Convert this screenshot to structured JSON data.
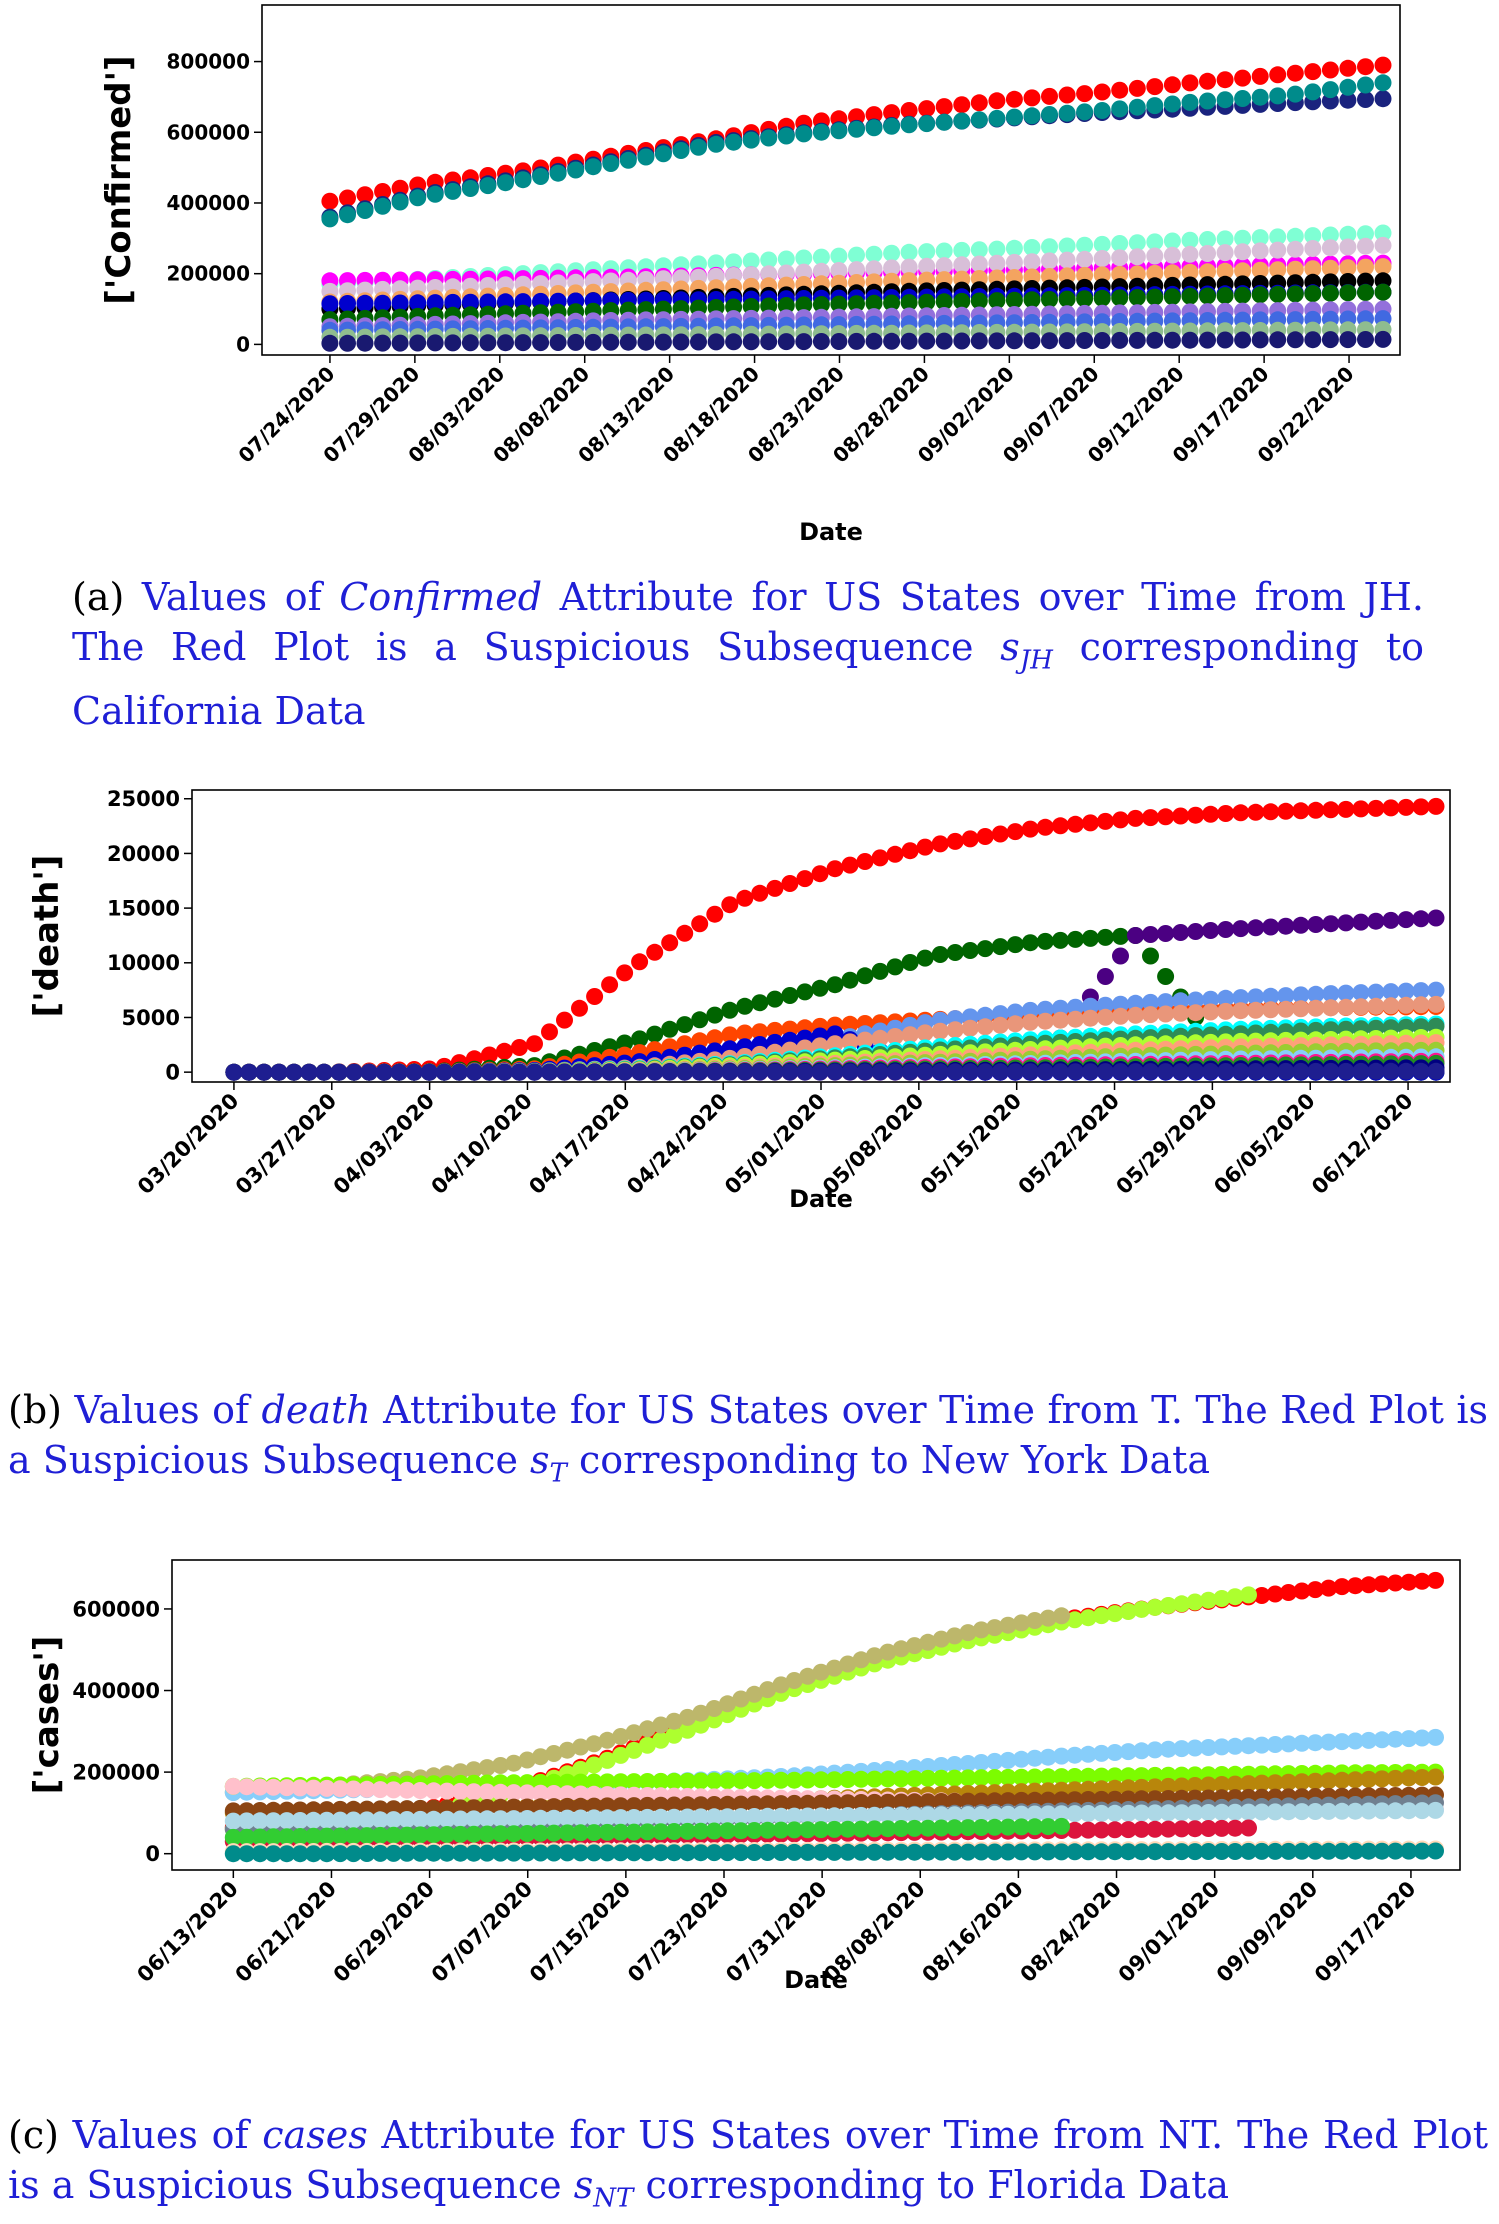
{
  "captions": {
    "a": {
      "tag": "(a)",
      "before": "Values of ",
      "italic": "Confirmed",
      "middle": " Attribute for US States over Time from JH. The Red Plot is a Suspicious Subsequence ",
      "math_main": "s",
      "math_sub": "JH",
      "after": " corresponding to California Data"
    },
    "b": {
      "tag": "(b)",
      "before": "Values of ",
      "italic": "death",
      "middle": " Attribute for US States over Time from T. The Red Plot is a Suspicious Subsequence ",
      "math_main": "s",
      "math_sub": "T",
      "after": " corresponding to New York Data"
    },
    "c": {
      "tag": "(c)",
      "before": "Values of ",
      "italic": "cases",
      "middle": " Attribute for US States over Time from NT. The Red Plot is a Suspicious Subsequence ",
      "math_main": "s",
      "math_sub": "NT",
      "after": " corresponding to Florida Data"
    }
  },
  "chart_data": [
    {
      "id": "a",
      "type": "scatter",
      "xlabel": "Date",
      "ylabel": "['Confirmed']",
      "ylim": [
        -30000,
        960000
      ],
      "yticks": [
        0,
        200000,
        400000,
        600000,
        800000
      ],
      "xlim": [
        "07/20/2020",
        "09/25/2020"
      ],
      "x_start": "07/24/2020",
      "x_end": "09/24/2020",
      "xticks": [
        "07/24/2020",
        "07/29/2020",
        "08/03/2020",
        "08/08/2020",
        "08/13/2020",
        "08/18/2020",
        "08/23/2020",
        "08/28/2020",
        "09/02/2020",
        "09/07/2020",
        "09/12/2020",
        "09/17/2020",
        "09/22/2020"
      ],
      "grid": false,
      "series": [
        {
          "color": "#ff0000",
          "values": [
            405000,
            455000,
            490000,
            535000,
            580000,
            628000,
            660000,
            690000,
            712000,
            740000,
            765000,
            790000
          ]
        },
        {
          "color": "#1a237e",
          "values": [
            360000,
            425000,
            470000,
            520000,
            570000,
            600000,
            622000,
            638000,
            655000,
            668000,
            683000,
            695000
          ]
        },
        {
          "color": "#008b8b",
          "values": [
            355000,
            420000,
            465000,
            515000,
            565000,
            597000,
            620000,
            640000,
            660000,
            685000,
            705000,
            740000
          ]
        },
        {
          "color": "#7fffd4",
          "values": [
            170000,
            185000,
            200000,
            215000,
            230000,
            245000,
            260000,
            270000,
            282000,
            295000,
            305000,
            315000
          ]
        },
        {
          "color": "#ff00ff",
          "values": [
            180000,
            183000,
            186000,
            190000,
            195000,
            200000,
            205000,
            210000,
            215000,
            220000,
            225000,
            230000
          ]
        },
        {
          "color": "#d8bfd8",
          "values": [
            150000,
            160000,
            170000,
            180000,
            192000,
            205000,
            218000,
            230000,
            242000,
            255000,
            268000,
            280000
          ]
        },
        {
          "color": "#f4a460",
          "values": [
            120000,
            130000,
            140000,
            150000,
            160000,
            170000,
            180000,
            188000,
            196000,
            204000,
            212000,
            220000
          ]
        },
        {
          "color": "#000000",
          "values": [
            100000,
            110000,
            118000,
            126000,
            134000,
            142000,
            150000,
            156000,
            162000,
            168000,
            174000,
            180000
          ]
        },
        {
          "color": "#0000cd",
          "values": [
            115000,
            118000,
            121000,
            124000,
            127000,
            130000,
            133000,
            136000,
            139000,
            142000,
            145000,
            148000
          ]
        },
        {
          "color": "#006400",
          "values": [
            70000,
            80000,
            88000,
            96000,
            104000,
            112000,
            118000,
            124000,
            130000,
            136000,
            142000,
            148000
          ]
        },
        {
          "color": "#9370db",
          "values": [
            50000,
            56000,
            62000,
            68000,
            72000,
            76000,
            80000,
            84000,
            88000,
            92000,
            96000,
            100000
          ]
        },
        {
          "color": "#4169e1",
          "values": [
            40000,
            43000,
            46000,
            49000,
            52000,
            55000,
            58000,
            61000,
            64000,
            67000,
            70000,
            73000
          ]
        },
        {
          "color": "#8fbc8f",
          "values": [
            20000,
            22000,
            24000,
            26000,
            28000,
            30000,
            32000,
            34000,
            36000,
            38000,
            40000,
            42000
          ]
        },
        {
          "color": "#191970",
          "values": [
            3000,
            4000,
            5000,
            6000,
            7000,
            8000,
            9000,
            10000,
            11000,
            12000,
            13000,
            14000
          ]
        }
      ]
    },
    {
      "id": "b",
      "type": "scatter",
      "xlabel": "Date",
      "ylabel": "['death']",
      "ylim": [
        -900,
        25800
      ],
      "yticks": [
        0,
        5000,
        10000,
        15000,
        20000,
        25000
      ],
      "xlim": [
        "03/17/2020",
        "06/15/2020"
      ],
      "x_start": "03/20/2020",
      "x_end": "06/14/2020",
      "xticks": [
        "03/20/2020",
        "03/27/2020",
        "04/03/2020",
        "04/10/2020",
        "04/17/2020",
        "04/24/2020",
        "05/01/2020",
        "05/08/2020",
        "05/15/2020",
        "05/22/2020",
        "05/29/2020",
        "06/05/2020",
        "06/12/2020"
      ],
      "grid": false,
      "series": [
        {
          "color": "#ff0000",
          "values": [
            0,
            5,
            300,
            2600,
            9800,
            15600,
            18600,
            20800,
            22300,
            23200,
            23700,
            24000,
            24300
          ]
        },
        {
          "color": "#006400",
          "values": [
            0,
            0,
            50,
            600,
            2900,
            5800,
            8000,
            10700,
            11900,
            12500,
            0,
            0,
            0
          ]
        },
        {
          "color": "#4b0082",
          "values": [
            0,
            0,
            0,
            0,
            0,
            0,
            0,
            0,
            0,
            12500,
            13100,
            13600,
            14100
          ]
        },
        {
          "color": "#ff4500",
          "values": [
            0,
            0,
            20,
            300,
            1700,
            3500,
            4300,
            4800,
            5300,
            5600,
            5800,
            5900,
            6000
          ]
        },
        {
          "color": "#6495ed",
          "values": [
            0,
            0,
            10,
            150,
            700,
            1600,
            3000,
            4700,
            5700,
            6300,
            6800,
            7200,
            7500
          ]
        },
        {
          "color": "#0000cd",
          "values": [
            0,
            0,
            10,
            150,
            900,
            2200,
            3500,
            0,
            0,
            0,
            0,
            0,
            0
          ]
        },
        {
          "color": "#e9967a",
          "values": [
            0,
            0,
            5,
            80,
            400,
            1300,
            2600,
            3700,
            4600,
            5200,
            5600,
            5900,
            6200
          ]
        },
        {
          "color": "#00ffff",
          "values": [
            0,
            0,
            5,
            60,
            300,
            800,
            1500,
            2300,
            3000,
            3500,
            3900,
            4200,
            4400
          ]
        },
        {
          "color": "#2e8b57",
          "values": [
            0,
            0,
            5,
            50,
            250,
            700,
            1300,
            2000,
            2600,
            3100,
            3500,
            3900,
            4200
          ]
        },
        {
          "color": "#adff2f",
          "values": [
            0,
            0,
            5,
            40,
            200,
            600,
            1100,
            1600,
            2100,
            2500,
            2800,
            3000,
            3200
          ]
        },
        {
          "color": "#ffa07a",
          "values": [
            0,
            0,
            5,
            30,
            150,
            400,
            800,
            1200,
            1600,
            2000,
            2300,
            2500,
            2700
          ]
        },
        {
          "color": "#9acd32",
          "values": [
            0,
            0,
            5,
            20,
            100,
            300,
            600,
            900,
            1200,
            1500,
            1700,
            1900,
            2000
          ]
        },
        {
          "color": "#87cefa",
          "values": [
            0,
            0,
            0,
            15,
            80,
            200,
            400,
            600,
            800,
            1000,
            1200,
            1300,
            1400
          ]
        },
        {
          "color": "#ff1493",
          "values": [
            0,
            0,
            0,
            10,
            50,
            150,
            300,
            450,
            600,
            700,
            800,
            900,
            1000
          ]
        },
        {
          "color": "#228b22",
          "values": [
            0,
            0,
            0,
            10,
            40,
            100,
            200,
            300,
            400,
            500,
            600,
            700,
            800
          ]
        },
        {
          "color": "#000080",
          "values": [
            0,
            0,
            0,
            5,
            20,
            50,
            100,
            150,
            200,
            250,
            300,
            350,
            400
          ]
        },
        {
          "color": "#1e1e90",
          "values": [
            0,
            0,
            0,
            0,
            5,
            10,
            20,
            30,
            40,
            50,
            60,
            70,
            80
          ]
        }
      ]
    },
    {
      "id": "c",
      "type": "scatter",
      "xlabel": "Date",
      "ylabel": "['cases']",
      "ylim": [
        -40000,
        720000
      ],
      "yticks": [
        0,
        200000,
        400000,
        600000
      ],
      "xlim": [
        "06/08/2020",
        "09/21/2020"
      ],
      "x_start": "06/13/2020",
      "x_end": "09/19/2020",
      "xticks": [
        "06/13/2020",
        "06/21/2020",
        "06/29/2020",
        "07/07/2020",
        "07/15/2020",
        "07/23/2020",
        "07/31/2020",
        "08/08/2020",
        "08/16/2020",
        "08/24/2020",
        "09/01/2020",
        "09/09/2020",
        "09/17/2020"
      ],
      "grid": false,
      "series": [
        {
          "color": "#ff0000",
          "values": [
            65000,
            80000,
            105000,
            155000,
            230000,
            320000,
            410000,
            480000,
            535000,
            575000,
            605000,
            630000,
            655000,
            670000
          ]
        },
        {
          "color": "#adff2f",
          "values": [
            60000,
            70000,
            95000,
            150000,
            225000,
            310000,
            400000,
            470000,
            525000,
            570000,
            605000,
            635000,
            0,
            0
          ]
        },
        {
          "color": "#bdb76b",
          "values": [
            150000,
            165000,
            185000,
            220000,
            275000,
            340000,
            420000,
            490000,
            545000,
            585000,
            0,
            0,
            0,
            0
          ]
        },
        {
          "color": "#87cefa",
          "values": [
            150000,
            155000,
            160000,
            165000,
            172000,
            180000,
            190000,
            205000,
            222000,
            240000,
            255000,
            265000,
            275000,
            285000
          ]
        },
        {
          "color": "#7cfc00",
          "values": [
            165000,
            168000,
            171000,
            174000,
            176000,
            178000,
            180000,
            183000,
            186000,
            189000,
            192000,
            195000,
            198000,
            200000
          ]
        },
        {
          "color": "#b8860b",
          "values": [
            100000,
            105000,
            110000,
            115000,
            120000,
            126000,
            132000,
            140000,
            148000,
            156000,
            164000,
            172000,
            180000,
            188000
          ]
        },
        {
          "color": "#ffc0cb",
          "values": [
            165000,
            160000,
            155000,
            150000,
            145000,
            140000,
            136000,
            132000,
            128000,
            124000,
            120000,
            116000,
            112000,
            108000
          ]
        },
        {
          "color": "#8b4513",
          "values": [
            105000,
            108000,
            111000,
            114000,
            117000,
            120000,
            123000,
            126000,
            129000,
            132000,
            135000,
            138000,
            141000,
            144000
          ]
        },
        {
          "color": "#708090",
          "values": [
            60000,
            65000,
            70000,
            75000,
            80000,
            85000,
            90000,
            95000,
            100000,
            105000,
            110000,
            115000,
            120000,
            125000
          ]
        },
        {
          "color": "#add8e6",
          "values": [
            80000,
            82000,
            84000,
            86000,
            88000,
            90000,
            92000,
            94000,
            96000,
            98000,
            100000,
            102000,
            104000,
            106000
          ]
        },
        {
          "color": "#dc143c",
          "values": [
            30000,
            33000,
            36000,
            39000,
            42000,
            45000,
            48000,
            51000,
            54000,
            57000,
            60000,
            63000,
            0,
            0
          ]
        },
        {
          "color": "#32cd32",
          "values": [
            40000,
            43000,
            46000,
            49000,
            52000,
            55000,
            58000,
            61000,
            64000,
            67000,
            0,
            0,
            0,
            0
          ]
        },
        {
          "color": "#ffdab9",
          "values": [
            5000,
            5500,
            6000,
            6500,
            7000,
            7500,
            8000,
            8500,
            9000,
            9500,
            10000,
            10500,
            11000,
            11500
          ]
        },
        {
          "color": "#008b8b",
          "values": [
            0,
            0,
            1000,
            1500,
            2000,
            2500,
            3000,
            3500,
            4000,
            4500,
            5000,
            5500,
            6000,
            6500
          ]
        }
      ]
    }
  ]
}
